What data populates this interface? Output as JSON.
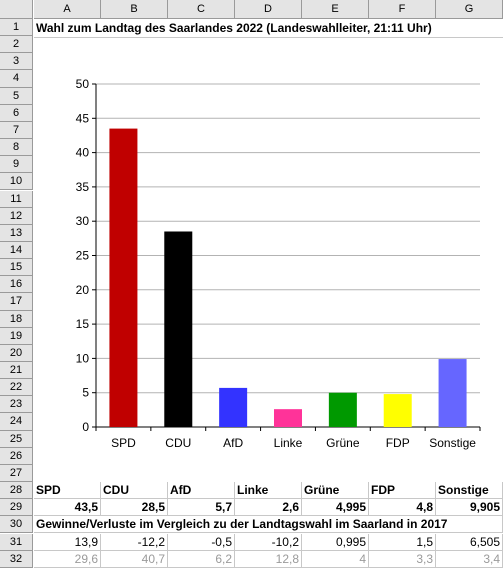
{
  "spreadsheet": {
    "columns": [
      "A",
      "B",
      "C",
      "D",
      "E",
      "F",
      "G"
    ],
    "rows": [
      "1",
      "2",
      "3",
      "4",
      "5",
      "6",
      "7",
      "8",
      "9",
      "10",
      "11",
      "12",
      "13",
      "14",
      "15",
      "16",
      "17",
      "18",
      "19",
      "20",
      "21",
      "22",
      "23",
      "24",
      "25",
      "26",
      "27",
      "28",
      "29",
      "30",
      "31",
      "32"
    ],
    "title": "Wahl zum Landtag des Saarlandes 2022 (Landeswahlleiter, 21:11 Uhr)",
    "row28": [
      "SPD",
      "CDU",
      "AfD",
      "Linke",
      "Grüne",
      "FDP",
      "Sonstige"
    ],
    "row29": [
      "43,5",
      "28,5",
      "5,7",
      "2,6",
      "4,995",
      "4,8",
      "9,905"
    ],
    "row30": "Gewinne/Verluste im Vergleich zu der Landtagswahl im Saarland in 2017",
    "row31": [
      "13,9",
      "-12,2",
      "-0,5",
      "-10,2",
      "0,995",
      "1,5",
      "6,505"
    ],
    "row32": [
      "29,6",
      "40,7",
      "6,2",
      "12,8",
      "4",
      "3,3",
      "3,4"
    ]
  },
  "chart_data": {
    "type": "bar",
    "categories": [
      "SPD",
      "CDU",
      "AfD",
      "Linke",
      "Grüne",
      "FDP",
      "Sonstige"
    ],
    "values": [
      43.5,
      28.5,
      5.7,
      2.6,
      4.995,
      4.8,
      9.905
    ],
    "colors": [
      "#c00000",
      "#000000",
      "#3333ff",
      "#ff3399",
      "#009900",
      "#ffff00",
      "#6666ff"
    ],
    "ylim": [
      0,
      50
    ],
    "yticks": [
      "0",
      "5",
      "10",
      "15",
      "20",
      "25",
      "30",
      "35",
      "40",
      "45",
      "50"
    ],
    "grid": true,
    "title": "",
    "xlabel": "",
    "ylabel": ""
  }
}
